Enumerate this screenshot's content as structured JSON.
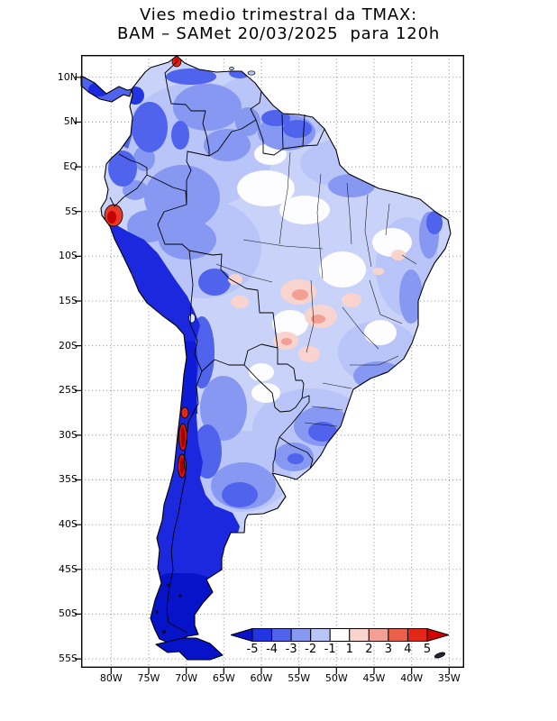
{
  "title": {
    "line1": "Vies medio trimestral da TMAX:",
    "line2": "BAM – SAMet 20/03/2025  para 120h"
  },
  "axes": {
    "lat_ticks": [
      "10N",
      "5N",
      "EQ",
      "5S",
      "10S",
      "15S",
      "20S",
      "25S",
      "30S",
      "35S",
      "40S",
      "45S",
      "50S",
      "55S"
    ],
    "lon_ticks": [
      "80W",
      "75W",
      "70W",
      "65W",
      "60W",
      "55W",
      "50W",
      "45W",
      "40W",
      "35W"
    ]
  },
  "colorbar": {
    "labels": [
      "-5",
      "-4",
      "-3",
      "-2",
      "-1",
      "1",
      "2",
      "3",
      "4",
      "5"
    ],
    "colors": [
      "#0713c9",
      "#2135e3",
      "#4f63ec",
      "#8698f2",
      "#b9c4f8",
      "#ffffff",
      "#f9d4ce",
      "#f3a094",
      "#ec6049",
      "#e22718",
      "#d40000"
    ]
  },
  "chart_data": {
    "type": "heatmap",
    "title": "Vies medio trimestral da TMAX: BAM – SAMet 20/03/2025 para 120h",
    "variable": "Quarterly mean bias of TMAX (°C)",
    "model": "BAM",
    "product": "SAMet",
    "date": "20/03/2025",
    "forecast_hour": "120h",
    "region": "South America",
    "lon_range": [
      "80W",
      "35W"
    ],
    "lat_range": [
      "10N",
      "55S"
    ],
    "levels": [
      -5,
      -4,
      -3,
      -2,
      -1,
      1,
      2,
      3,
      4,
      5
    ],
    "palette": [
      "#0713c9",
      "#2135e3",
      "#4f63ec",
      "#8698f2",
      "#b9c4f8",
      "#ffffff",
      "#f9d4ce",
      "#f3a094",
      "#ec6049",
      "#e22718",
      "#d40000"
    ],
    "grid": "dotted, every 5 degrees",
    "legend_position": "inside plot, bottom right, horizontal with arrow end caps",
    "features": [
      {
        "region": "Andes cordillera, Chile, western Argentina and all of Patagonia / Tierra del Fuego",
        "bias_c": "-5 and below (saturated dark blue)"
      },
      {
        "region": "Coastal Peru and Pacific coast of Colombia",
        "bias_c": "-4 to -5"
      },
      {
        "region": "Most of Amazon basin, Venezuela, Guianas, southern Brazil, Uruguay, Pampas",
        "bias_c": "-1 to -3"
      },
      {
        "region": "Central Amazon, Paraguay and patches of eastern/central Brazil",
        "bias_c": "-1 to +1 (near zero, white)"
      },
      {
        "region": "Central Brazil (Mato Grosso / Goiás) and adjacent lowlands",
        "bias_c": "+1 to +2 (pale pink)"
      },
      {
        "region": "NW Peru coast, La Guajira tip, spots on central Chile coast (27S-34S)",
        "bias_c": "+3 to +5 and above (red, outlined)"
      }
    ]
  }
}
